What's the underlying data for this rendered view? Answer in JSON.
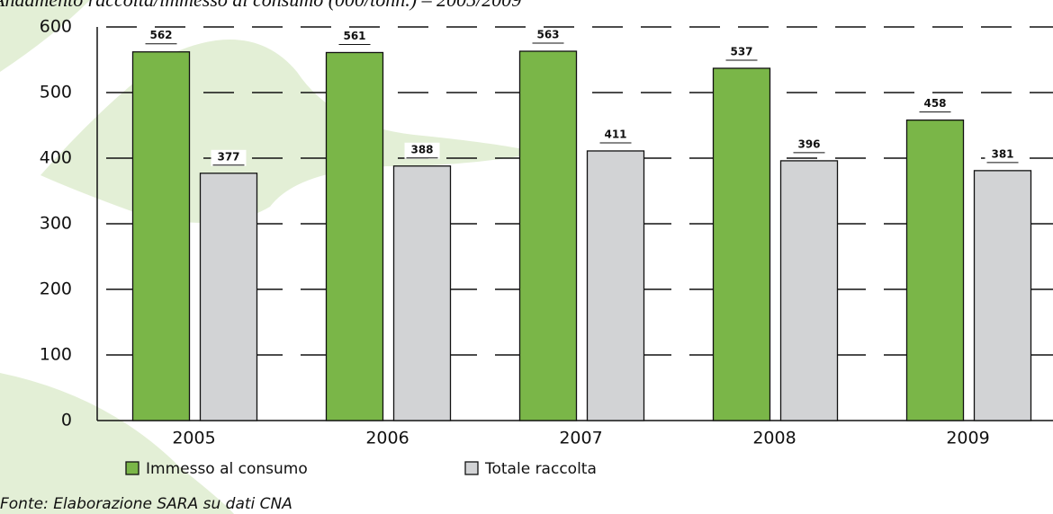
{
  "chart_data": {
    "type": "bar",
    "title": "Andamento raccolta/immesso al consumo (000/tonn.) – 2005/2009",
    "categories": [
      "2005",
      "2006",
      "2007",
      "2008",
      "2009"
    ],
    "series": [
      {
        "name": "Immesso al consumo",
        "color": "#7ab648",
        "values": [
          562,
          561,
          563,
          537,
          458
        ]
      },
      {
        "name": "Totale raccolta",
        "color": "#d2d3d5",
        "values": [
          377,
          388,
          411,
          396,
          381
        ]
      }
    ],
    "ylim": [
      0,
      600
    ],
    "yticks": [
      0,
      100,
      200,
      300,
      400,
      500,
      600
    ],
    "grid": true,
    "source": "Fonte: Elaborazione SARA su dati CNA"
  }
}
